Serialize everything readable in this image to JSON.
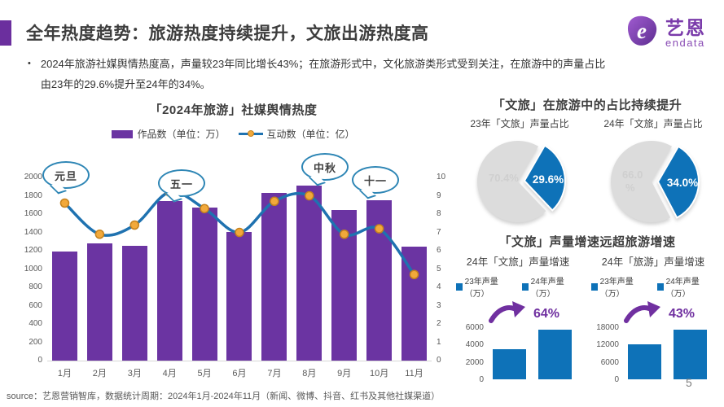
{
  "header": {
    "title": "全年热度趋势：旅游热度持续提升，文旅出游热度高",
    "logo": {
      "brand": "艺恩",
      "sub": "endata"
    }
  },
  "bullet": {
    "marker": "•",
    "text": "2024年旅游社媒舆情热度高，声量较23年同比增长43%；在旅游形式中，文化旅游类形式受到关注，在旅游中的声量占比由23年的29.6%提升至24年的34%。"
  },
  "sections": {
    "share": {
      "title": "「文旅」在旅游中的占比持续提升"
    },
    "growth": {
      "title": "「文旅」声量增速远超旅游增速"
    }
  },
  "chart_data": [
    {
      "type": "bar",
      "subtype": "combo-bar-line",
      "title": "「2024年旅游」社媒舆情热度",
      "categories": [
        "1月",
        "2月",
        "3月",
        "4月",
        "5月",
        "6月",
        "7月",
        "8月",
        "9月",
        "10月",
        "11月"
      ],
      "series": [
        {
          "name": "作品数（单位：万）",
          "type": "bar",
          "axis": "left",
          "values": [
            1190,
            1280,
            1255,
            1745,
            1670,
            1400,
            1830,
            1915,
            1640,
            1750,
            1245
          ]
        },
        {
          "name": "互动数（单位：亿）",
          "type": "line",
          "axis": "right",
          "values": [
            8.6,
            6.9,
            7.4,
            9.2,
            8.3,
            7.0,
            8.7,
            9.0,
            6.9,
            7.2,
            4.7
          ]
        }
      ],
      "left_axis": {
        "min": 0,
        "max": 2000,
        "step": 200
      },
      "right_axis": {
        "min": 0,
        "max": 10,
        "step": 1
      },
      "grid": false,
      "legend_position": "top",
      "annotations": [
        "元旦",
        "五一",
        "中秋",
        "十一"
      ]
    },
    {
      "type": "pie",
      "title": "23年「文旅」声量占比",
      "slices": [
        {
          "label": "70.4%",
          "label_lines": [
            "70.4%"
          ],
          "value": 70.4,
          "color": "#DCDCDC"
        },
        {
          "label": "29.6%",
          "label_lines": [
            "29.6%"
          ],
          "value": 29.6,
          "color": "#0E72B8",
          "exploded": true
        }
      ]
    },
    {
      "type": "pie",
      "title": "24年「文旅」声量占比",
      "slices": [
        {
          "label": "66.0%",
          "label_lines": [
            "66.0",
            "%"
          ],
          "value": 66.0,
          "color": "#DCDCDC"
        },
        {
          "label": "34.0%",
          "label_lines": [
            "34.0%"
          ],
          "value": 34.0,
          "color": "#0E72B8",
          "exploded": true
        }
      ]
    },
    {
      "type": "bar",
      "title": "24年「文旅」声量增速",
      "categories": [
        "23年声量（万）",
        "24年声量（万）"
      ],
      "values": [
        3500,
        5740
      ],
      "growth": "64%",
      "ylim": [
        0,
        6000
      ],
      "yticks": [
        0,
        2000,
        4000,
        6000
      ],
      "grid": false,
      "legend_position": "top"
    },
    {
      "type": "bar",
      "title": "24年「旅游」声量增速",
      "categories": [
        "23年声量（万）",
        "24年声量（万）"
      ],
      "values": [
        12000,
        17160
      ],
      "growth": "43%",
      "ylim": [
        0,
        18000
      ],
      "yticks": [
        0,
        6000,
        12000,
        18000
      ],
      "grid": false,
      "legend_position": "top"
    }
  ],
  "colors": {
    "accent_purple": "#6B2F9E",
    "bar_purple": "#6B34A2",
    "line_blue": "#1F72B0",
    "dot_orange": "#F2A93B",
    "dot_border": "#C5821E",
    "chart_blue": "#0E72B8",
    "pie_gray": "#DCDCDC",
    "pie_gray_label": "#CFCFCF",
    "growth_purple": "#7030A0",
    "callout_blue": "#2E86B5"
  },
  "footer": {
    "source": "source：艺恩营销智库，数据统计周期：2024年1月-2024年11月（新闻、微博、抖音、红书及其他社媒渠道）",
    "page": "5"
  }
}
